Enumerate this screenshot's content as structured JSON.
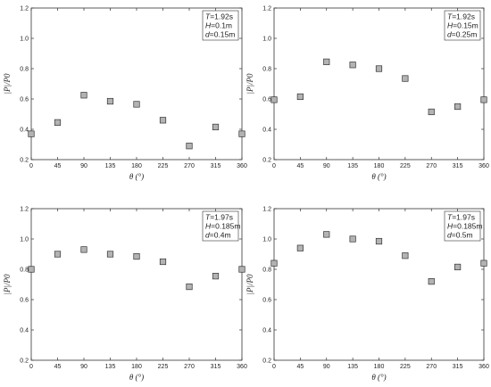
{
  "chart_data": [
    {
      "type": "scatter",
      "xlabel": "θ (°)",
      "ylabel": "|P|/P0",
      "xlim": [
        0,
        360
      ],
      "ylim": [
        0.2,
        1.2
      ],
      "xticks": [
        "0",
        "45",
        "90",
        "135",
        "180",
        "225",
        "270",
        "315",
        "360"
      ],
      "yticks": [
        "0.2",
        "0.4",
        "0.6",
        "0.8",
        "1.0",
        "1.2"
      ],
      "grid": false,
      "legend_placement": "top-right",
      "legend": {
        "T": "1.92s",
        "H": "0.1m",
        "d": "0.15m"
      },
      "x": [
        0,
        45,
        90,
        135,
        180,
        225,
        270,
        315,
        360
      ],
      "y": [
        0.37,
        0.445,
        0.625,
        0.585,
        0.565,
        0.46,
        0.29,
        0.415,
        0.37
      ]
    },
    {
      "type": "scatter",
      "xlabel": "θ (°)",
      "ylabel": "|P|/P0",
      "xlim": [
        0,
        360
      ],
      "ylim": [
        0.2,
        1.2
      ],
      "xticks": [
        "0",
        "45",
        "90",
        "135",
        "180",
        "225",
        "270",
        "315",
        "360"
      ],
      "yticks": [
        "0.2",
        "0.4",
        "0.6",
        "0.8",
        "1.0",
        "1.2"
      ],
      "grid": false,
      "legend_placement": "top-right",
      "legend": {
        "T": "1.92s",
        "H": "0.15m",
        "d": "0.25m"
      },
      "x": [
        0,
        45,
        90,
        135,
        180,
        225,
        270,
        315,
        360
      ],
      "y": [
        0.595,
        0.615,
        0.845,
        0.825,
        0.8,
        0.735,
        0.515,
        0.55,
        0.595
      ]
    },
    {
      "type": "scatter",
      "xlabel": "θ (°)",
      "ylabel": "|P|/P0",
      "xlim": [
        0,
        360
      ],
      "ylim": [
        0.2,
        1.2
      ],
      "xticks": [
        "0",
        "45",
        "90",
        "135",
        "180",
        "225",
        "270",
        "315",
        "360"
      ],
      "yticks": [
        "0.2",
        "0.4",
        "0.6",
        "0.8",
        "1.0",
        "1.2"
      ],
      "grid": false,
      "legend_placement": "top-right",
      "legend": {
        "T": "1.97s",
        "H": "0.185m",
        "d": "0.4m"
      },
      "x": [
        0,
        45,
        90,
        135,
        180,
        225,
        270,
        315,
        360
      ],
      "y": [
        0.8,
        0.9,
        0.93,
        0.9,
        0.885,
        0.85,
        0.685,
        0.755,
        0.8
      ]
    },
    {
      "type": "scatter",
      "xlabel": "θ (°)",
      "ylabel": "|P|/P0",
      "xlim": [
        0,
        360
      ],
      "ylim": [
        0.2,
        1.2
      ],
      "xticks": [
        "0",
        "45",
        "90",
        "135",
        "180",
        "225",
        "270",
        "315",
        "360"
      ],
      "yticks": [
        "0.2",
        "0.4",
        "0.6",
        "0.8",
        "1.0",
        "1.2"
      ],
      "grid": false,
      "legend_placement": "top-right",
      "legend": {
        "T": "1.97s",
        "H": "0.185m",
        "d": "0.5m"
      },
      "x": [
        0,
        45,
        90,
        135,
        180,
        225,
        270,
        315,
        360
      ],
      "y": [
        0.84,
        0.94,
        1.03,
        1.0,
        0.985,
        0.89,
        0.72,
        0.815,
        0.84
      ]
    }
  ],
  "colors": {
    "marker_fill": "#b3b3b3",
    "marker_stroke": "#333333",
    "axis": "#333333"
  }
}
